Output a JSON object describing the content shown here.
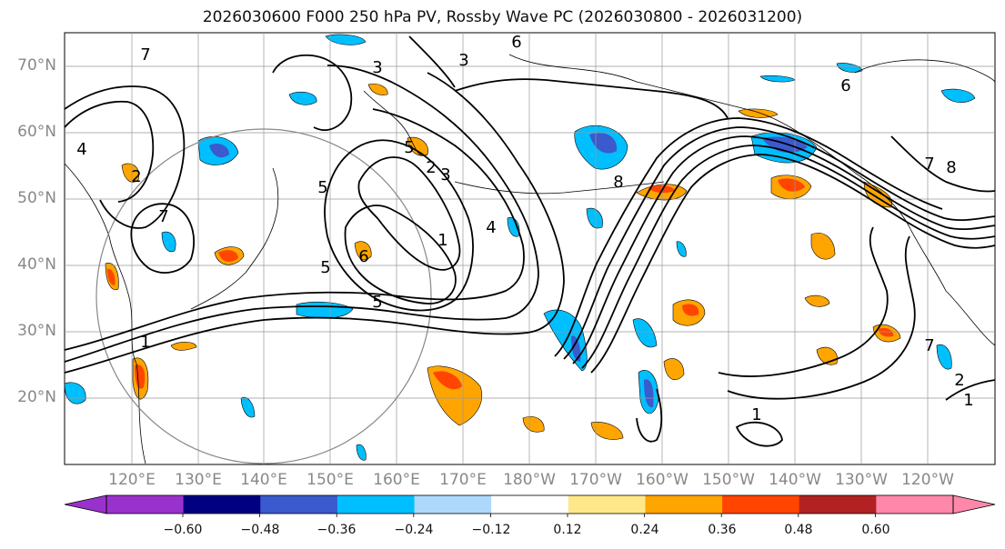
{
  "title": "2026030600 F000 250 hPa PV, Rossby Wave PC (2026030800 - 2026031200)",
  "lat_labels": [
    "70°N",
    "60°N",
    "50°N",
    "40°N",
    "30°N",
    "20°N"
  ],
  "lon_labels": [
    "120°E",
    "130°E",
    "140°E",
    "150°E",
    "160°E",
    "170°E",
    "180°W",
    "170°W",
    "160°W",
    "150°W",
    "140°W",
    "130°W",
    "120°W"
  ],
  "contour_labels": [
    "7",
    "5",
    "6",
    "3",
    "4",
    "2",
    "5",
    "3",
    "7",
    "5",
    "6",
    "2",
    "3",
    "1",
    "4",
    "5",
    "8",
    "7",
    "6",
    "8",
    "7",
    "2",
    "1",
    "1",
    "1"
  ],
  "colorbar": {
    "ticks": [
      "−0.60",
      "−0.48",
      "−0.36",
      "−0.24",
      "−0.12",
      "0.12",
      "0.24",
      "0.36",
      "0.48",
      "0.60"
    ],
    "colors": [
      "#9932cc",
      "#000080",
      "#3a5acd",
      "#00bfff",
      "#add8fb",
      "#ffffff",
      "#ffe88a",
      "#ffa500",
      "#ff4500",
      "#b22222",
      "#ff88aa",
      "#ff88aa"
    ]
  }
}
